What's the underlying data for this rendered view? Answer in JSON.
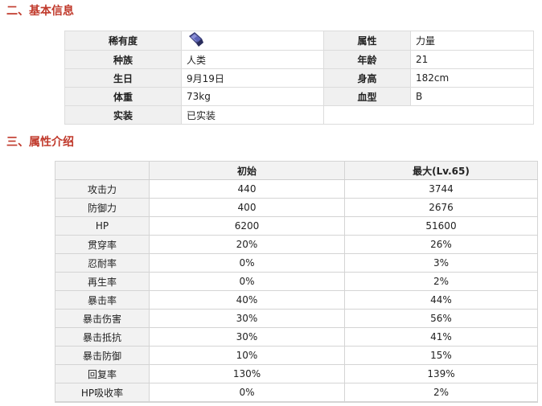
{
  "sections": {
    "basic_title": "二、基本信息",
    "attr_title": "三、属性介绍"
  },
  "basic_info": {
    "rarity_label": "稀有度",
    "rarity_icon": "rarity-gem-icon",
    "attribute_label": "属性",
    "attribute_value": "力量",
    "race_label": "种族",
    "race_value": "人类",
    "age_label": "年龄",
    "age_value": "21",
    "birthday_label": "生日",
    "birthday_value": "9月19日",
    "height_label": "身高",
    "height_value": "182cm",
    "weight_label": "体重",
    "weight_value": "73kg",
    "blood_label": "血型",
    "blood_value": "B",
    "implemented_label": "实装",
    "implemented_value": "已实装"
  },
  "attributes": {
    "headers": [
      "",
      "初始",
      "最大(Lv.65)"
    ],
    "rows": [
      {
        "name": "攻击力",
        "initial": "440",
        "max": "3744"
      },
      {
        "name": "防御力",
        "initial": "400",
        "max": "2676"
      },
      {
        "name": "HP",
        "initial": "6200",
        "max": "51600"
      },
      {
        "name": "贯穿率",
        "initial": "20%",
        "max": "26%"
      },
      {
        "name": "忍耐率",
        "initial": "0%",
        "max": "3%"
      },
      {
        "name": "再生率",
        "initial": "0%",
        "max": "2%"
      },
      {
        "name": "暴击率",
        "initial": "40%",
        "max": "44%"
      },
      {
        "name": "暴击伤害",
        "initial": "30%",
        "max": "56%"
      },
      {
        "name": "暴击抵抗",
        "initial": "30%",
        "max": "41%"
      },
      {
        "name": "暴击防御",
        "initial": "10%",
        "max": "15%"
      },
      {
        "name": "回复率",
        "initial": "130%",
        "max": "139%"
      },
      {
        "name": "HP吸收率",
        "initial": "0%",
        "max": "2%"
      }
    ]
  },
  "colors": {
    "section_title": "#c0392b",
    "header_bg": "#f0f0f0",
    "border": "#dcdcdc"
  }
}
